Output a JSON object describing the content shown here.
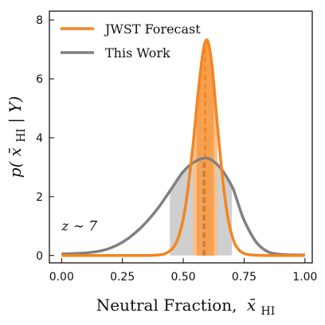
{
  "chart_data": {
    "type": "line",
    "xlabel": "Neutral Fraction, x̄HI",
    "xlabel_main": "Neutral Fraction,",
    "xlabel_var": "x̄",
    "xlabel_sub": "HI",
    "ylabel": "p(x̄HI | Y)",
    "ylabel_pre": "p(",
    "ylabel_var": "x̄",
    "ylabel_sub": "HI",
    "ylabel_post": " | Y)",
    "xlim": [
      -0.05,
      1.03
    ],
    "ylim": [
      -0.25,
      8.3
    ],
    "xticks": [
      0.0,
      0.25,
      0.5,
      0.75,
      1.0
    ],
    "xtick_labels": [
      "0.00",
      "0.25",
      "0.50",
      "0.75",
      "1.00"
    ],
    "yticks": [
      0,
      2,
      4,
      6,
      8
    ],
    "ytick_labels": [
      "0",
      "2",
      "4",
      "6",
      "8"
    ],
    "grid": false,
    "legend_position": "upper-left",
    "annotation": "z ∼ 7",
    "annotation_position": [
      0.0,
      0.85
    ],
    "series": [
      {
        "name": "JWST Forecast",
        "color": "#F5841F",
        "x": [
          0.0,
          0.2,
          0.3,
          0.35,
          0.4,
          0.43,
          0.46,
          0.48,
          0.5,
          0.52,
          0.54,
          0.55,
          0.56,
          0.57,
          0.58,
          0.59,
          0.6,
          0.61,
          0.62,
          0.63,
          0.64,
          0.66,
          0.68,
          0.7,
          0.72,
          0.75,
          0.8,
          0.9,
          1.0
        ],
        "y": [
          0.0,
          0.0,
          0.0,
          0.0,
          0.02,
          0.08,
          0.28,
          0.62,
          1.25,
          2.3,
          3.75,
          4.6,
          5.45,
          6.2,
          6.85,
          7.25,
          7.3,
          6.95,
          6.3,
          5.4,
          4.45,
          2.75,
          1.45,
          0.68,
          0.28,
          0.07,
          0.01,
          0.0,
          0.0
        ],
        "mean": 0.59,
        "interval_inner": [
          0.555,
          0.625
        ],
        "interval_outer": [
          0.54,
          0.64
        ]
      },
      {
        "name": "This Work",
        "color": "#808080",
        "x": [
          0.0,
          0.1,
          0.15,
          0.2,
          0.25,
          0.3,
          0.35,
          0.4,
          0.45,
          0.5,
          0.55,
          0.6,
          0.65,
          0.7,
          0.72,
          0.75,
          0.8,
          0.85,
          0.9,
          0.95,
          1.0
        ],
        "y": [
          0.05,
          0.09,
          0.14,
          0.25,
          0.45,
          0.75,
          1.15,
          1.65,
          2.25,
          2.85,
          3.2,
          3.3,
          3.0,
          2.35,
          1.9,
          1.2,
          0.45,
          0.12,
          0.04,
          0.02,
          0.02
        ],
        "mean": 0.585,
        "interval": [
          0.445,
          0.7
        ]
      }
    ]
  }
}
